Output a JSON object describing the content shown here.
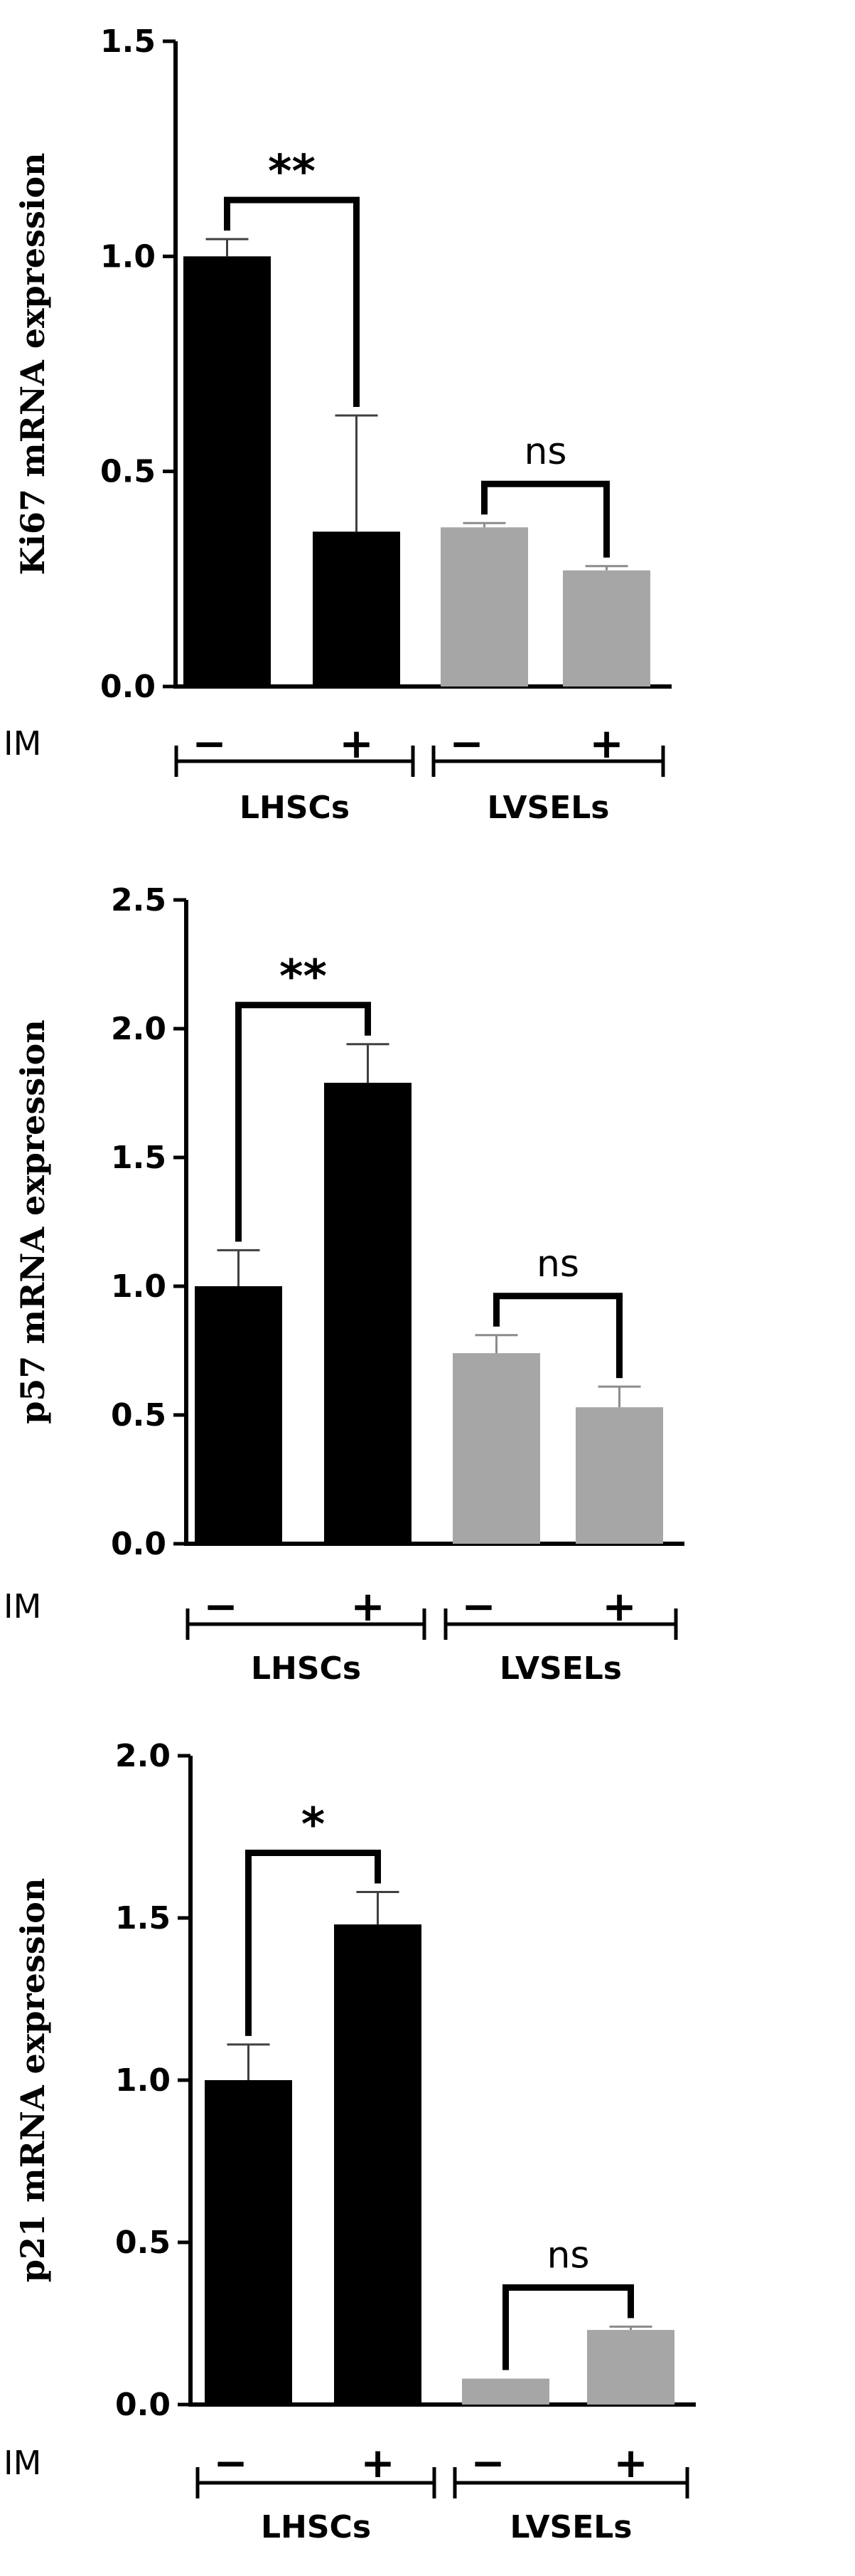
{
  "colors": {
    "lhsc": "#000000",
    "lvsel": "#a6a6a6",
    "errorbar_lhsc": "#404040",
    "errorbar_lvsel": "#8c8c8c"
  },
  "chart_data": [
    {
      "type": "bar",
      "ylabel": "Ki67 mRNA expression",
      "ylim": [
        0,
        1.5
      ],
      "yticks": [
        "0.0",
        "0.5",
        "1.0",
        "1.5"
      ],
      "factor_label": "IM",
      "treatment_labels": [
        "−",
        "+",
        "−",
        "+"
      ],
      "groups": [
        {
          "name": "LHSCs",
          "values": [
            1.0,
            0.36
          ],
          "errors": [
            0.04,
            0.27
          ],
          "significance": "**"
        },
        {
          "name": "LVSELs",
          "values": [
            0.37,
            0.27
          ],
          "errors": [
            0.01,
            0.01
          ],
          "significance": "ns"
        }
      ]
    },
    {
      "type": "bar",
      "ylabel": "p57 mRNA expression",
      "ylim": [
        0,
        2.5
      ],
      "yticks": [
        "0.0",
        "0.5",
        "1.0",
        "1.5",
        "2.0",
        "2.5"
      ],
      "factor_label": "IM",
      "treatment_labels": [
        "−",
        "+",
        "−",
        "+"
      ],
      "groups": [
        {
          "name": "LHSCs",
          "values": [
            1.0,
            1.79
          ],
          "errors": [
            0.14,
            0.15
          ],
          "significance": "**"
        },
        {
          "name": "LVSELs",
          "values": [
            0.74,
            0.53
          ],
          "errors": [
            0.07,
            0.08
          ],
          "significance": "ns"
        }
      ]
    },
    {
      "type": "bar",
      "ylabel": "p21 mRNA expression",
      "ylim": [
        0,
        2.0
      ],
      "yticks": [
        "0.0",
        "0.5",
        "1.0",
        "1.5",
        "2.0"
      ],
      "factor_label": "IM",
      "treatment_labels": [
        "−",
        "+",
        "−",
        "+"
      ],
      "groups": [
        {
          "name": "LHSCs",
          "values": [
            1.0,
            1.48
          ],
          "errors": [
            0.11,
            0.1
          ],
          "significance": "*"
        },
        {
          "name": "LVSELs",
          "values": [
            0.08,
            0.23
          ],
          "errors": [
            0.0,
            0.01
          ],
          "significance": "ns"
        }
      ]
    }
  ]
}
